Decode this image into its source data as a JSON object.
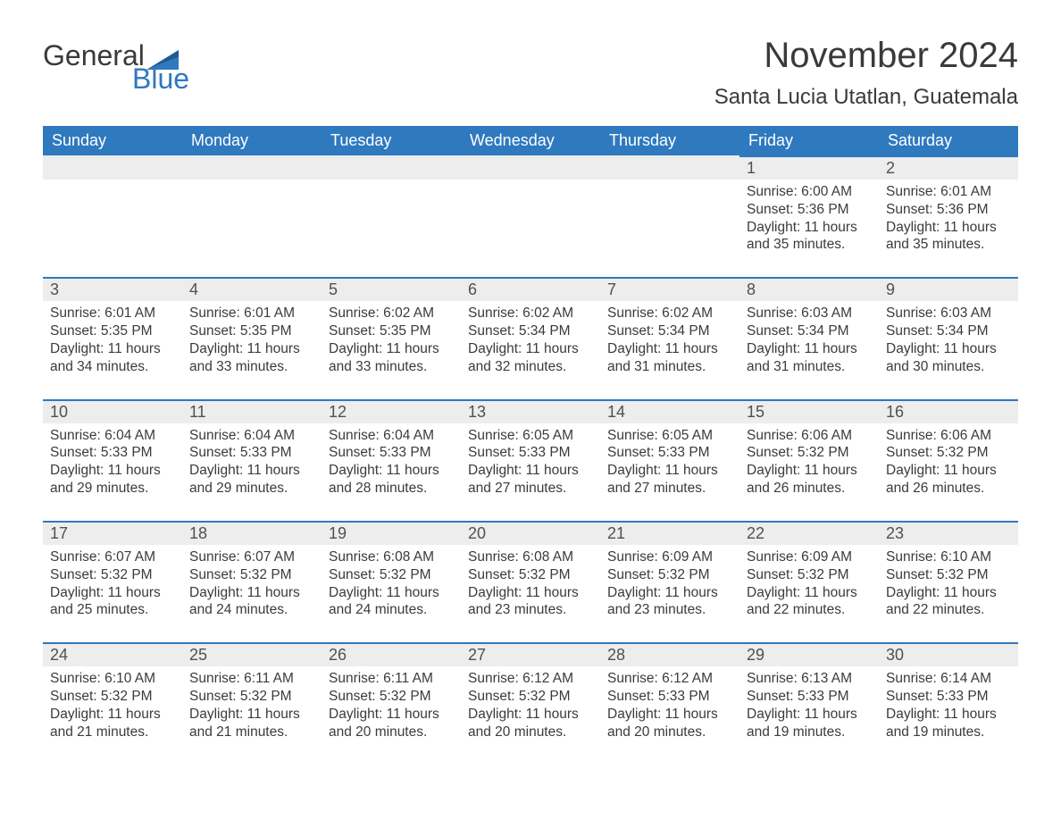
{
  "brand": {
    "line1": "General",
    "line2": "Blue",
    "accent": "#2f79bf",
    "text": "#3a3a3a"
  },
  "header": {
    "title": "November 2024",
    "location": "Santa Lucia Utatlan, Guatemala"
  },
  "colors": {
    "header_bg": "#2f79bf",
    "header_fg": "#ffffff",
    "row_border": "#2f79bf",
    "daybar_bg": "#ededed",
    "page_bg": "#ffffff",
    "body_text": "#3a3a3a"
  },
  "weekdays": [
    "Sunday",
    "Monday",
    "Tuesday",
    "Wednesday",
    "Thursday",
    "Friday",
    "Saturday"
  ],
  "weeks": [
    [
      null,
      null,
      null,
      null,
      null,
      {
        "n": "1",
        "sr": "6:00 AM",
        "ss": "5:36 PM",
        "dl": "11 hours and 35 minutes."
      },
      {
        "n": "2",
        "sr": "6:01 AM",
        "ss": "5:36 PM",
        "dl": "11 hours and 35 minutes."
      }
    ],
    [
      {
        "n": "3",
        "sr": "6:01 AM",
        "ss": "5:35 PM",
        "dl": "11 hours and 34 minutes."
      },
      {
        "n": "4",
        "sr": "6:01 AM",
        "ss": "5:35 PM",
        "dl": "11 hours and 33 minutes."
      },
      {
        "n": "5",
        "sr": "6:02 AM",
        "ss": "5:35 PM",
        "dl": "11 hours and 33 minutes."
      },
      {
        "n": "6",
        "sr": "6:02 AM",
        "ss": "5:34 PM",
        "dl": "11 hours and 32 minutes."
      },
      {
        "n": "7",
        "sr": "6:02 AM",
        "ss": "5:34 PM",
        "dl": "11 hours and 31 minutes."
      },
      {
        "n": "8",
        "sr": "6:03 AM",
        "ss": "5:34 PM",
        "dl": "11 hours and 31 minutes."
      },
      {
        "n": "9",
        "sr": "6:03 AM",
        "ss": "5:34 PM",
        "dl": "11 hours and 30 minutes."
      }
    ],
    [
      {
        "n": "10",
        "sr": "6:04 AM",
        "ss": "5:33 PM",
        "dl": "11 hours and 29 minutes."
      },
      {
        "n": "11",
        "sr": "6:04 AM",
        "ss": "5:33 PM",
        "dl": "11 hours and 29 minutes."
      },
      {
        "n": "12",
        "sr": "6:04 AM",
        "ss": "5:33 PM",
        "dl": "11 hours and 28 minutes."
      },
      {
        "n": "13",
        "sr": "6:05 AM",
        "ss": "5:33 PM",
        "dl": "11 hours and 27 minutes."
      },
      {
        "n": "14",
        "sr": "6:05 AM",
        "ss": "5:33 PM",
        "dl": "11 hours and 27 minutes."
      },
      {
        "n": "15",
        "sr": "6:06 AM",
        "ss": "5:32 PM",
        "dl": "11 hours and 26 minutes."
      },
      {
        "n": "16",
        "sr": "6:06 AM",
        "ss": "5:32 PM",
        "dl": "11 hours and 26 minutes."
      }
    ],
    [
      {
        "n": "17",
        "sr": "6:07 AM",
        "ss": "5:32 PM",
        "dl": "11 hours and 25 minutes."
      },
      {
        "n": "18",
        "sr": "6:07 AM",
        "ss": "5:32 PM",
        "dl": "11 hours and 24 minutes."
      },
      {
        "n": "19",
        "sr": "6:08 AM",
        "ss": "5:32 PM",
        "dl": "11 hours and 24 minutes."
      },
      {
        "n": "20",
        "sr": "6:08 AM",
        "ss": "5:32 PM",
        "dl": "11 hours and 23 minutes."
      },
      {
        "n": "21",
        "sr": "6:09 AM",
        "ss": "5:32 PM",
        "dl": "11 hours and 23 minutes."
      },
      {
        "n": "22",
        "sr": "6:09 AM",
        "ss": "5:32 PM",
        "dl": "11 hours and 22 minutes."
      },
      {
        "n": "23",
        "sr": "6:10 AM",
        "ss": "5:32 PM",
        "dl": "11 hours and 22 minutes."
      }
    ],
    [
      {
        "n": "24",
        "sr": "6:10 AM",
        "ss": "5:32 PM",
        "dl": "11 hours and 21 minutes."
      },
      {
        "n": "25",
        "sr": "6:11 AM",
        "ss": "5:32 PM",
        "dl": "11 hours and 21 minutes."
      },
      {
        "n": "26",
        "sr": "6:11 AM",
        "ss": "5:32 PM",
        "dl": "11 hours and 20 minutes."
      },
      {
        "n": "27",
        "sr": "6:12 AM",
        "ss": "5:32 PM",
        "dl": "11 hours and 20 minutes."
      },
      {
        "n": "28",
        "sr": "6:12 AM",
        "ss": "5:33 PM",
        "dl": "11 hours and 20 minutes."
      },
      {
        "n": "29",
        "sr": "6:13 AM",
        "ss": "5:33 PM",
        "dl": "11 hours and 19 minutes."
      },
      {
        "n": "30",
        "sr": "6:14 AM",
        "ss": "5:33 PM",
        "dl": "11 hours and 19 minutes."
      }
    ]
  ],
  "labels": {
    "sunrise": "Sunrise: ",
    "sunset": "Sunset: ",
    "daylight": "Daylight: "
  }
}
